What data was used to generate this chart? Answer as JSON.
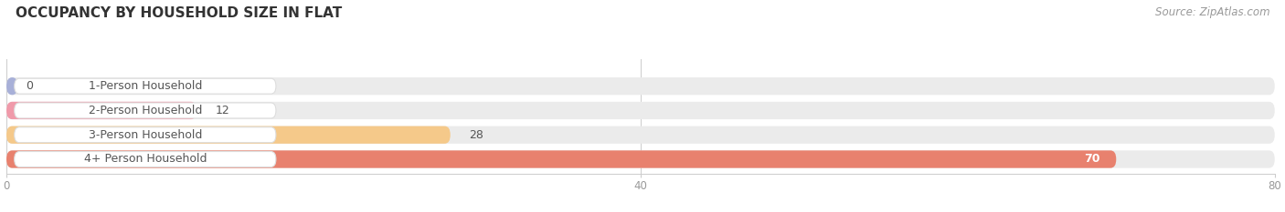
{
  "title": "OCCUPANCY BY HOUSEHOLD SIZE IN FLAT",
  "source": "Source: ZipAtlas.com",
  "categories": [
    "1-Person Household",
    "2-Person Household",
    "3-Person Household",
    "4+ Person Household"
  ],
  "values": [
    0,
    12,
    28,
    70
  ],
  "bar_colors": [
    "#a8b0d8",
    "#f09aaa",
    "#f5c98a",
    "#e8816e"
  ],
  "row_bg_color": "#ebebeb",
  "white_bg": "#ffffff",
  "label_box_color": "#ffffff",
  "xlim": [
    0,
    80
  ],
  "xticks": [
    0,
    40,
    80
  ],
  "title_fontsize": 11,
  "label_fontsize": 9,
  "value_fontsize": 9,
  "source_fontsize": 8.5,
  "value_inside_color": "#ffffff",
  "value_outside_color": "#555555",
  "tick_color": "#999999",
  "grid_color": "#cccccc",
  "title_color": "#333333",
  "source_color": "#999999",
  "label_text_color": "#555555"
}
